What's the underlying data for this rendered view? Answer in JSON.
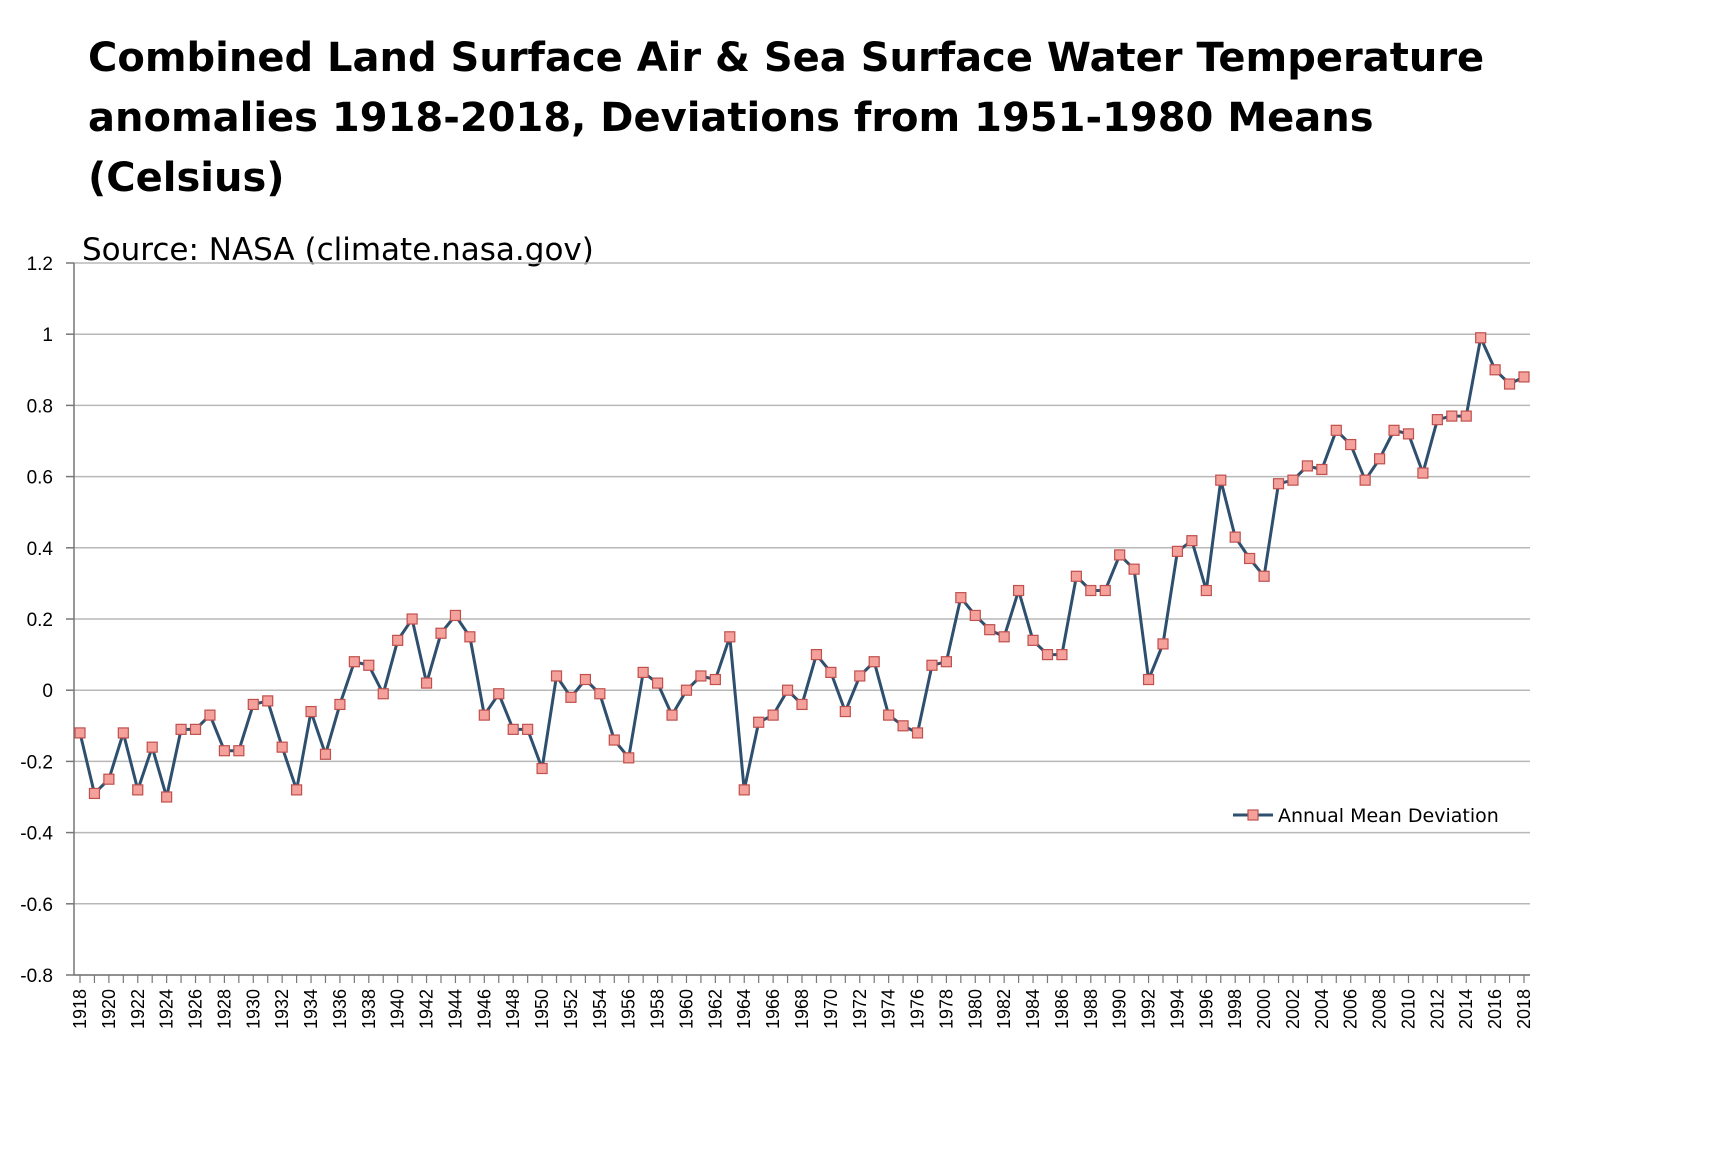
{
  "title": "Combined Land Surface Air & Sea Surface Water Temperature anomalies 1918-2018, Deviations from 1951-1980 Means (Celsius)",
  "source": "Source: NASA (climate.nasa.gov)",
  "colors": {
    "line": "#2e4f6e",
    "marker_fill": "#f4a19c",
    "marker_stroke": "#c0504d",
    "grid": "#b8b8b8"
  },
  "chart_data": {
    "type": "line",
    "title": "Combined Land Surface Air & Sea Surface Water Temperature anomalies 1918-2018, Deviations from 1951-1980 Means (Celsius)",
    "xlabel": "",
    "ylabel": "",
    "ylim": [
      -0.8,
      1.2
    ],
    "yticks": [
      -0.8,
      -0.6,
      -0.4,
      -0.2,
      0,
      0.2,
      0.4,
      0.6,
      0.8,
      1,
      1.2
    ],
    "ytick_labels": [
      "-0.8",
      "-0.6",
      "-0.4",
      "-0.2",
      "0",
      "0.2",
      "0.4",
      "0.6",
      "0.8",
      "1",
      "1.2"
    ],
    "grid": true,
    "legend_position": "right",
    "x": [
      1918,
      1919,
      1920,
      1921,
      1922,
      1923,
      1924,
      1925,
      1926,
      1927,
      1928,
      1929,
      1930,
      1931,
      1932,
      1933,
      1934,
      1935,
      1936,
      1937,
      1938,
      1939,
      1940,
      1941,
      1942,
      1943,
      1944,
      1945,
      1946,
      1947,
      1948,
      1949,
      1950,
      1951,
      1952,
      1953,
      1954,
      1955,
      1956,
      1957,
      1958,
      1959,
      1960,
      1961,
      1962,
      1963,
      1964,
      1965,
      1966,
      1967,
      1968,
      1969,
      1970,
      1971,
      1972,
      1973,
      1974,
      1975,
      1976,
      1977,
      1978,
      1979,
      1980,
      1981,
      1982,
      1983,
      1984,
      1985,
      1986,
      1987,
      1988,
      1989,
      1990,
      1991,
      1992,
      1993,
      1994,
      1995,
      1996,
      1997,
      1998,
      1999,
      2000,
      2001,
      2002,
      2003,
      2004,
      2005,
      2006,
      2007,
      2008,
      2009,
      2010,
      2011,
      2012,
      2013,
      2014,
      2015,
      2016,
      2017,
      2018
    ],
    "x_tick_labels": [
      "1918",
      "1920",
      "1922",
      "1924",
      "1926",
      "1928",
      "1930",
      "1932",
      "1934",
      "1936",
      "1938",
      "1940",
      "1942",
      "1944",
      "1946",
      "1948",
      "1950",
      "1952",
      "1954",
      "1956",
      "1958",
      "1960",
      "1962",
      "1964",
      "1966",
      "1968",
      "1970",
      "1972",
      "1974",
      "1976",
      "1978",
      "1980",
      "1982",
      "1984",
      "1986",
      "1988",
      "1990",
      "1992",
      "1994",
      "1996",
      "1998",
      "2000",
      "2002",
      "2004",
      "2006",
      "2008",
      "2010",
      "2012",
      "2014",
      "2016",
      "2018"
    ],
    "series": [
      {
        "name": "Annual Mean Deviation",
        "values": [
          -0.12,
          -0.29,
          -0.25,
          -0.12,
          -0.28,
          -0.16,
          -0.3,
          -0.11,
          -0.11,
          -0.07,
          -0.17,
          -0.17,
          -0.04,
          -0.03,
          -0.16,
          -0.28,
          -0.06,
          -0.18,
          -0.04,
          0.08,
          0.07,
          -0.01,
          0.14,
          0.2,
          0.02,
          0.16,
          0.21,
          0.15,
          -0.07,
          -0.01,
          -0.11,
          -0.11,
          -0.22,
          0.04,
          -0.02,
          0.03,
          -0.01,
          -0.14,
          -0.19,
          0.05,
          0.02,
          -0.07,
          0.0,
          0.04,
          0.03,
          0.15,
          -0.28,
          -0.09,
          -0.07,
          0.0,
          -0.04,
          0.1,
          0.05,
          -0.06,
          0.04,
          0.08,
          -0.07,
          -0.1,
          -0.12,
          0.07,
          0.08,
          0.26,
          0.21,
          0.17,
          0.15,
          0.28,
          0.14,
          0.1,
          0.1,
          0.32,
          0.28,
          0.28,
          0.38,
          0.34,
          0.03,
          0.13,
          0.39,
          0.42,
          0.28,
          0.59,
          0.43,
          0.37,
          0.32,
          0.58,
          0.59,
          0.63,
          0.62,
          0.73,
          0.69,
          0.59,
          0.65,
          0.73,
          0.72,
          0.61,
          0.76,
          0.77,
          0.77,
          0.99,
          0.9,
          0.86,
          0.88
        ]
      }
    ]
  }
}
